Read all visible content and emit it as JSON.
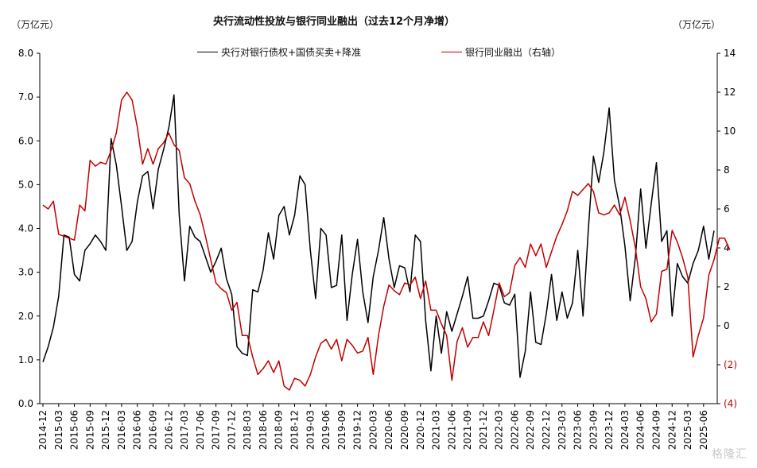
{
  "chart_data": {
    "type": "line",
    "title": "央行流动性投放与银行同业融出（过去12个月净增）",
    "left_unit": "（万亿元）",
    "right_unit": "（万亿元）",
    "legend_position": "top",
    "grid": false,
    "y_left": {
      "lim": [
        0,
        8
      ],
      "ticks": [
        "0.0",
        "1.0",
        "2.0",
        "3.0",
        "4.0",
        "5.0",
        "6.0",
        "7.0",
        "8.0"
      ]
    },
    "y_right": {
      "lim": [
        -4,
        14
      ],
      "ticks": [
        "(4)",
        "(2)",
        "0",
        "2",
        "4",
        "6",
        "8",
        "10",
        "12",
        "14"
      ],
      "negative_color": "#c00000"
    },
    "x_tick_labels": [
      "2014-12",
      "2015-03",
      "2015-06",
      "2015-09",
      "2015-12",
      "2016-03",
      "2016-06",
      "2016-09",
      "2016-12",
      "2017-03",
      "2017-06",
      "2017-09",
      "2017-12",
      "2018-03",
      "2018-06",
      "2018-09",
      "2018-12",
      "2019-03",
      "2019-06",
      "2019-09",
      "2019-12",
      "2020-03",
      "2020-06",
      "2020-09",
      "2020-12",
      "2021-03",
      "2021-06",
      "2021-09",
      "2021-12",
      "2022-03",
      "2022-06",
      "2022-09",
      "2022-12",
      "2023-03",
      "2023-06",
      "2023-09",
      "2023-12",
      "2024-03",
      "2024-06",
      "2024-09",
      "2024-12",
      "2025-03",
      "2025-06"
    ],
    "start_month": "2014-12",
    "series": [
      {
        "name": "央行对银行债权+国债买卖+降准",
        "axis": "left",
        "color": "#000000",
        "values": [
          0.95,
          1.3,
          1.75,
          2.45,
          3.85,
          3.8,
          2.95,
          2.8,
          3.5,
          3.65,
          3.85,
          3.7,
          3.5,
          6.05,
          5.45,
          4.5,
          3.5,
          3.7,
          4.6,
          5.2,
          5.3,
          4.45,
          5.35,
          5.8,
          6.3,
          7.05,
          4.3,
          2.8,
          4.05,
          3.8,
          3.7,
          3.35,
          3.0,
          3.25,
          3.55,
          2.85,
          2.5,
          1.3,
          1.15,
          1.1,
          2.6,
          2.55,
          3.05,
          3.9,
          3.3,
          4.3,
          4.5,
          3.85,
          4.3,
          5.2,
          5.0,
          3.5,
          2.4,
          4.0,
          3.85,
          2.65,
          2.7,
          3.85,
          1.9,
          2.95,
          3.75,
          2.55,
          1.85,
          2.9,
          3.5,
          4.25,
          3.3,
          2.65,
          3.15,
          3.1,
          2.55,
          3.85,
          3.7,
          1.9,
          0.75,
          2.0,
          1.15,
          2.1,
          1.65,
          2.05,
          2.45,
          2.9,
          1.95,
          1.95,
          2.0,
          2.35,
          2.75,
          2.7,
          2.3,
          2.25,
          2.5,
          0.6,
          1.2,
          2.55,
          1.4,
          1.35,
          2.05,
          2.95,
          1.9,
          2.55,
          1.95,
          2.3,
          3.5,
          2.0,
          3.95,
          5.65,
          5.05,
          5.75,
          6.75,
          5.1,
          4.5,
          3.6,
          2.35,
          3.35,
          4.9,
          3.55,
          4.55,
          5.5,
          3.7,
          3.95,
          2.0,
          3.2,
          2.9,
          2.75,
          3.2,
          3.5,
          4.05,
          3.3,
          3.95
        ]
      },
      {
        "name": "银行同业融出（右轴）",
        "axis": "right",
        "color": "#c00000",
        "values": [
          6.2,
          6.0,
          6.4,
          4.7,
          4.6,
          4.5,
          4.4,
          6.2,
          5.9,
          8.5,
          8.2,
          8.4,
          8.3,
          9.0,
          9.9,
          11.6,
          12.0,
          11.6,
          10.2,
          8.3,
          9.1,
          8.3,
          9.1,
          9.4,
          9.9,
          9.3,
          9.0,
          7.6,
          7.3,
          6.4,
          5.7,
          4.6,
          3.4,
          2.2,
          1.9,
          1.7,
          0.8,
          1.2,
          -0.5,
          -0.5,
          -1.6,
          -2.5,
          -2.2,
          -1.8,
          -2.4,
          -1.8,
          -3.1,
          -3.3,
          -2.7,
          -2.8,
          -3.1,
          -2.5,
          -1.6,
          -0.9,
          -0.7,
          -1.2,
          -0.7,
          -1.8,
          -0.7,
          -1.0,
          -1.4,
          -1.3,
          -0.6,
          -2.5,
          -0.5,
          1.0,
          2.1,
          1.8,
          1.6,
          2.2,
          2.1,
          2.5,
          1.4,
          2.3,
          0.8,
          0.8,
          0.1,
          -0.5,
          -2.8,
          -0.8,
          -0.1,
          -1.1,
          -0.6,
          -0.6,
          0.2,
          -0.5,
          0.8,
          2.2,
          1.5,
          1.7,
          3.1,
          3.5,
          3.0,
          4.2,
          3.6,
          4.2,
          3.0,
          3.8,
          4.6,
          5.2,
          5.9,
          6.9,
          6.7,
          7.0,
          7.3,
          6.9,
          5.8,
          5.7,
          5.8,
          6.2,
          5.7,
          6.6,
          5.4,
          4.0,
          2.0,
          1.4,
          0.2,
          0.6,
          2.8,
          2.9,
          4.9,
          4.3,
          3.5,
          2.5,
          -1.6,
          -0.5,
          0.4,
          2.6,
          3.4,
          4.5,
          4.5,
          3.9
        ]
      }
    ]
  },
  "watermark": "格隆汇"
}
